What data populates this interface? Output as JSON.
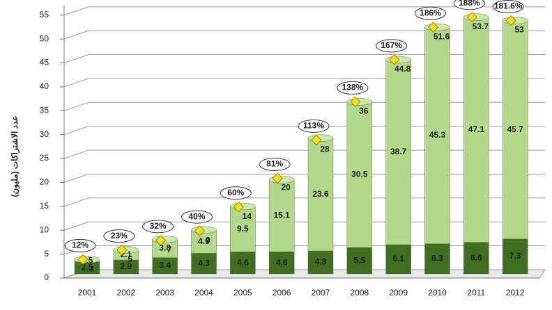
{
  "chart_data": {
    "type": "stacked-cylinder",
    "y_label": "عدد الاشتراكات (مليون)",
    "categories": [
      "2001",
      "2002",
      "2003",
      "2004",
      "2005",
      "2006",
      "2007",
      "2008",
      "2009",
      "2010",
      "2011",
      "2012"
    ],
    "series": [
      {
        "color": "#3f6e23",
        "values": [
          2.5,
          2.9,
          3.4,
          4.3,
          4.6,
          4.6,
          4.8,
          5.5,
          6.1,
          6.3,
          6.6,
          7.3
        ]
      },
      {
        "color": "#b3d78c",
        "values": [
          0.5,
          2.1,
          3.8,
          4.9,
          9.5,
          15.1,
          23.6,
          30.5,
          38.7,
          45.3,
          47.1,
          45.7
        ]
      }
    ],
    "totals": {
      "color": "#f3df2a",
      "values": [
        3,
        5,
        7,
        9,
        14,
        20,
        28,
        36,
        44.8,
        51.6,
        53.7,
        53
      ]
    },
    "percent_labels": [
      "12%",
      "23%",
      "32%",
      "40%",
      "60%",
      "81%",
      "113%",
      "138%",
      "167%",
      "186%",
      "188%",
      "181.6%"
    ],
    "ylim": [
      0,
      57
    ],
    "yticks": [
      0,
      5,
      10,
      15,
      20,
      25,
      30,
      35,
      40,
      45,
      50,
      55
    ],
    "grid": true
  }
}
